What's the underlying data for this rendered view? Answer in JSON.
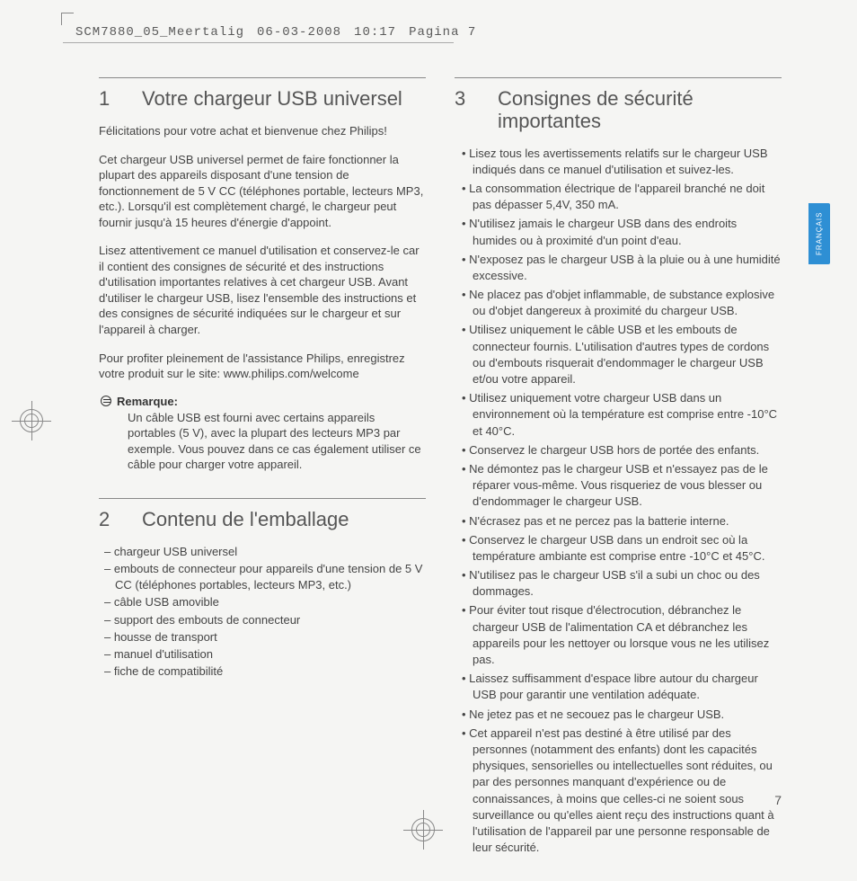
{
  "meta": {
    "filename": "SCM7880_05_Meertalig",
    "date": "06-03-2008",
    "time": "10:17",
    "pagina": "Pagina",
    "pagenum_top": "7"
  },
  "lang_tab": "FRANÇAIS",
  "page_number": "7",
  "left": {
    "s1": {
      "num": "1",
      "title": "Votre chargeur USB universel",
      "p1": "Félicitations pour votre achat et bienvenue chez Philips!",
      "p2": "Cet chargeur USB universel permet de faire fonctionner la plupart des appareils disposant d'une tension de fonctionnement de 5 V CC (téléphones portable, lecteurs MP3, etc.). Lorsqu'il est complètement chargé, le chargeur peut fournir jusqu'à 15 heures d'énergie d'appoint.",
      "p3": "Lisez attentivement ce manuel d'utilisation et conservez-le car il contient des consignes de sécurité et des instructions d'utilisation importantes relatives à cet chargeur USB. Avant d'utiliser le chargeur USB, lisez l'ensemble des instructions et des consignes de sécurité indiquées sur le chargeur et sur l'appareil à charger.",
      "p4": "Pour profiter pleinement de l'assistance Philips, enregistrez votre produit sur le site: www.philips.com/welcome",
      "remark_title": "Remarque:",
      "remark_body": "Un câble USB est fourni avec certains appareils portables (5 V), avec la plupart des lecteurs MP3 par exemple. Vous pouvez dans ce cas également utiliser ce câble pour charger votre appareil."
    },
    "s2": {
      "num": "2",
      "title": "Contenu de l'emballage",
      "items": [
        "chargeur USB universel",
        "embouts de connecteur pour appareils d'une tension de 5 V CC (téléphones portables, lecteurs MP3, etc.)",
        "câble USB amovible",
        "support des embouts de connecteur",
        "housse de transport",
        "manuel d'utilisation",
        "fiche de compatibilité"
      ]
    }
  },
  "right": {
    "s3": {
      "num": "3",
      "title": "Consignes de sécurité importantes",
      "items": [
        "Lisez tous les avertissements relatifs sur le chargeur USB indiqués dans ce manuel d'utilisation et suivez-les.",
        "La consommation électrique de l'appareil branché ne doit pas dépasser 5,4V, 350 mA.",
        "N'utilisez jamais le chargeur USB dans des endroits humides ou à proximité d'un point d'eau.",
        "N'exposez pas le chargeur USB à la pluie ou à une humidité excessive.",
        "Ne placez pas d'objet inflammable, de substance explosive ou d'objet dangereux à proximité du chargeur USB.",
        "Utilisez uniquement le câble USB et les embouts de connecteur fournis. L'utilisation d'autres types de cordons ou d'embouts risquerait d'endommager le chargeur USB et/ou votre appareil.",
        "Utilisez uniquement votre chargeur USB dans un environnement où la température est comprise entre -10°C et 40°C.",
        "Conservez le chargeur USB hors de portée des enfants.",
        "Ne démontez pas le chargeur USB et n'essayez pas de le réparer vous-même. Vous risqueriez de vous blesser ou d'endommager le chargeur USB.",
        "N'écrasez pas et ne percez pas la batterie interne.",
        "Conservez le chargeur USB dans un endroit sec où la température ambiante est comprise entre -10°C et 45°C.",
        "N'utilisez pas le chargeur USB s'il a subi un choc ou des dommages.",
        "Pour éviter tout risque d'électrocution, débranchez le chargeur USB de l'alimentation CA et débranchez les appareils pour les nettoyer ou lorsque vous ne les utilisez pas.",
        "Laissez suffisamment d'espace libre autour du chargeur USB pour garantir une ventilation adéquate.",
        "Ne jetez pas et ne secouez pas le chargeur USB.",
        "Cet appareil n'est pas destiné à être utilisé par des personnes (notamment des enfants) dont les capacités physiques, sensorielles ou intellectuelles sont réduites, ou par des personnes manquant d'expérience ou de connaissances, à moins que celles-ci ne soient sous surveillance ou qu'elles aient reçu des instructions quant à l'utilisation de l'appareil par une personne responsable de leur sécurité."
      ]
    }
  }
}
